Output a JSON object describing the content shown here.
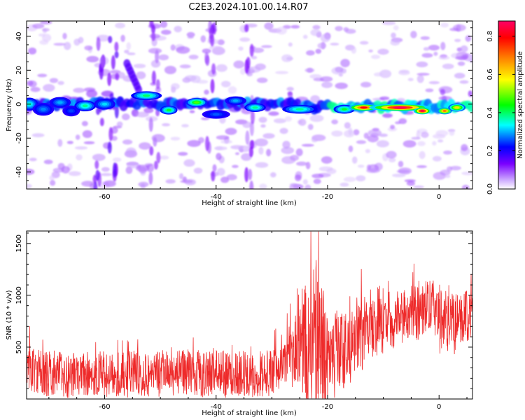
{
  "title": "C2E3.2024.101.00.14.R07",
  "chart_data": [
    {
      "type": "heatmap",
      "xlabel": "Height of straight line (km)",
      "ylabel": "Frequency (Hz)",
      "xlim": [
        -74,
        6
      ],
      "ylim": [
        -50,
        49
      ],
      "xticks": [
        "-60",
        "-40",
        "-20",
        "0"
      ],
      "yticks": [
        "40",
        "20",
        "0",
        "-20",
        "-40"
      ],
      "colorbar": {
        "label": "Normalized spectral amplitude",
        "range": [
          0.0,
          0.88
        ],
        "ticks": [
          "0.0",
          "0.2",
          "0.4",
          "0.6",
          "0.8"
        ],
        "colors": [
          "#e8e0f8",
          "#7a00ff",
          "#0000ff",
          "#00ffff",
          "#00ff00",
          "#ffff00",
          "#ff8000",
          "#ff0000",
          "#ff0066"
        ]
      },
      "blobs": [
        {
          "x": -73.5,
          "y": 0,
          "w": 1.2,
          "h": 3,
          "v": 0.35
        },
        {
          "x": -71,
          "y": -3,
          "w": 1.5,
          "h": 3,
          "v": 0.28
        },
        {
          "x": -68,
          "y": 1,
          "w": 1.5,
          "h": 2.5,
          "v": 0.3
        },
        {
          "x": -66,
          "y": -4,
          "w": 1.2,
          "h": 2.5,
          "v": 0.25
        },
        {
          "x": -63.5,
          "y": -1,
          "w": 1.5,
          "h": 2.5,
          "v": 0.38
        },
        {
          "x": -60,
          "y": 0,
          "w": 1.5,
          "h": 2.5,
          "v": 0.32
        },
        {
          "x": -52.5,
          "y": 5,
          "w": 2.2,
          "h": 2,
          "v": 0.4
        },
        {
          "x": -48.5,
          "y": -3.5,
          "w": 1.2,
          "h": 2,
          "v": 0.42
        },
        {
          "x": -43.5,
          "y": 1,
          "w": 1.5,
          "h": 2,
          "v": 0.48
        },
        {
          "x": -40,
          "y": -6,
          "w": 2,
          "h": 2,
          "v": 0.26
        },
        {
          "x": -36.5,
          "y": 2,
          "w": 1.5,
          "h": 2,
          "v": 0.3
        },
        {
          "x": -33,
          "y": -2,
          "w": 1.5,
          "h": 2,
          "v": 0.38
        },
        {
          "x": -25,
          "y": -3,
          "w": 2.5,
          "h": 2,
          "v": 0.38
        },
        {
          "x": -17,
          "y": -3,
          "w": 1.5,
          "h": 2,
          "v": 0.42
        },
        {
          "x": -13.5,
          "y": -2,
          "w": 2.2,
          "h": 1.6,
          "v": 0.8
        },
        {
          "x": -9.5,
          "y": -2,
          "w": 1.5,
          "h": 1.6,
          "v": 0.82
        },
        {
          "x": -7,
          "y": -2,
          "w": 4.5,
          "h": 1.6,
          "v": 0.88
        },
        {
          "x": -3,
          "y": -4,
          "w": 1.2,
          "h": 1.5,
          "v": 0.85
        },
        {
          "x": 1,
          "y": -4,
          "w": 1,
          "h": 1.5,
          "v": 0.7
        },
        {
          "x": 3.2,
          "y": -2,
          "w": 1.2,
          "h": 1.8,
          "v": 0.6
        }
      ]
    },
    {
      "type": "line",
      "xlabel": "Height of straight line (km)",
      "ylabel": "SNR (10 * v/v)",
      "xlim": [
        -74,
        6
      ],
      "ylim": [
        0,
        1620
      ],
      "xticks": [
        "-60",
        "-40",
        "-20",
        "0"
      ],
      "yticks": [
        "500",
        "1000",
        "1500"
      ],
      "series": [
        {
          "color": "#ee2a2a",
          "x": [
            -74,
            -72,
            -70,
            -68,
            -66,
            -64,
            -62,
            -60,
            -58,
            -56,
            -54,
            -52,
            -50,
            -48,
            -46,
            -44,
            -42,
            -40,
            -38,
            -36,
            -34,
            -32,
            -30,
            -28,
            -26,
            -25,
            -24,
            -23,
            -22,
            -21,
            -20,
            -19,
            -18,
            -17,
            -16,
            -15,
            -14,
            -13,
            -12,
            -11,
            -10,
            -9,
            -8,
            -7,
            -6,
            -5,
            -4,
            -3,
            -2,
            -1,
            0,
            1,
            2,
            3,
            4,
            5,
            6
          ],
          "y": [
            300,
            260,
            240,
            250,
            230,
            260,
            250,
            240,
            250,
            230,
            270,
            230,
            250,
            240,
            260,
            250,
            240,
            280,
            230,
            250,
            240,
            250,
            240,
            300,
            420,
            600,
            500,
            450,
            600,
            500,
            350,
            400,
            450,
            500,
            480,
            520,
            600,
            700,
            650,
            800,
            750,
            720,
            750,
            800,
            820,
            850,
            800,
            880,
            900,
            950,
            700,
            750,
            800,
            720,
            750,
            780,
            760
          ],
          "spread": [
            250,
            250,
            250,
            250,
            250,
            250,
            250,
            250,
            250,
            250,
            250,
            250,
            250,
            250,
            250,
            250,
            250,
            250,
            250,
            250,
            250,
            250,
            250,
            250,
            350,
            600,
            700,
            800,
            900,
            700,
            500,
            500,
            450,
            450,
            400,
            400,
            400,
            400,
            400,
            400,
            350,
            350,
            300,
            300,
            300,
            300,
            300,
            300,
            300,
            300,
            350,
            350,
            350,
            350,
            300,
            300,
            300
          ]
        }
      ]
    }
  ]
}
